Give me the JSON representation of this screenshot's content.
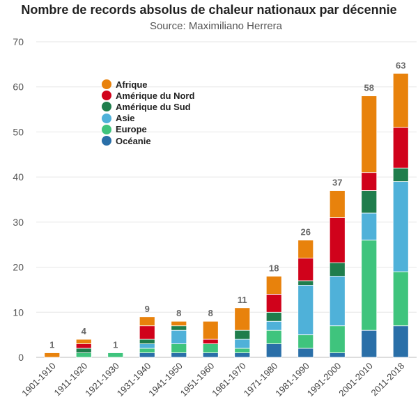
{
  "chart_data": {
    "type": "bar",
    "stacked": true,
    "title": "Nombre de records absolus de chaleur nationaux par décennie",
    "subtitle": "Source: Maximiliano Herrera",
    "categories": [
      "1901-1910",
      "1911-1920",
      "1921-1930",
      "1931-1940",
      "1941-1950",
      "1951-1960",
      "1961-1970",
      "1971-1980",
      "1981-1990",
      "1991-2000",
      "2001-2010",
      "2011-2018"
    ],
    "series": [
      {
        "name": "Océanie",
        "color": "#2a6fa8",
        "values": [
          0,
          0,
          0,
          1,
          1,
          1,
          1,
          3,
          2,
          1,
          6,
          7
        ]
      },
      {
        "name": "Europe",
        "color": "#3fc47d",
        "values": [
          0,
          1,
          1,
          1,
          2,
          2,
          1,
          3,
          3,
          6,
          20,
          12
        ]
      },
      {
        "name": "Asie",
        "color": "#4fb1d9",
        "values": [
          0,
          0,
          0,
          1,
          3,
          0,
          2,
          2,
          11,
          11,
          6,
          20
        ]
      },
      {
        "name": "Amérique du Sud",
        "color": "#1f7d4c",
        "values": [
          0,
          1,
          0,
          1,
          1,
          0,
          2,
          2,
          1,
          3,
          5,
          3
        ]
      },
      {
        "name": "Amérique du Nord",
        "color": "#d0021b",
        "values": [
          0,
          1,
          0,
          3,
          0,
          1,
          0,
          4,
          5,
          10,
          4,
          9
        ]
      },
      {
        "name": "Afrique",
        "color": "#e8820c",
        "values": [
          1,
          1,
          0,
          2,
          1,
          4,
          5,
          4,
          4,
          6,
          17,
          12
        ]
      }
    ],
    "totals": [
      1,
      4,
      1,
      9,
      8,
      8,
      11,
      18,
      26,
      37,
      58,
      63
    ],
    "legend_order": [
      "Afrique",
      "Amérique du Nord",
      "Amérique du Sud",
      "Asie",
      "Europe",
      "Océanie"
    ],
    "yticks": [
      0,
      10,
      20,
      30,
      40,
      50,
      60,
      70
    ],
    "ylim": [
      0,
      70
    ],
    "xlabel": "",
    "ylabel": "",
    "grid": true,
    "legend_position": "top-left"
  }
}
